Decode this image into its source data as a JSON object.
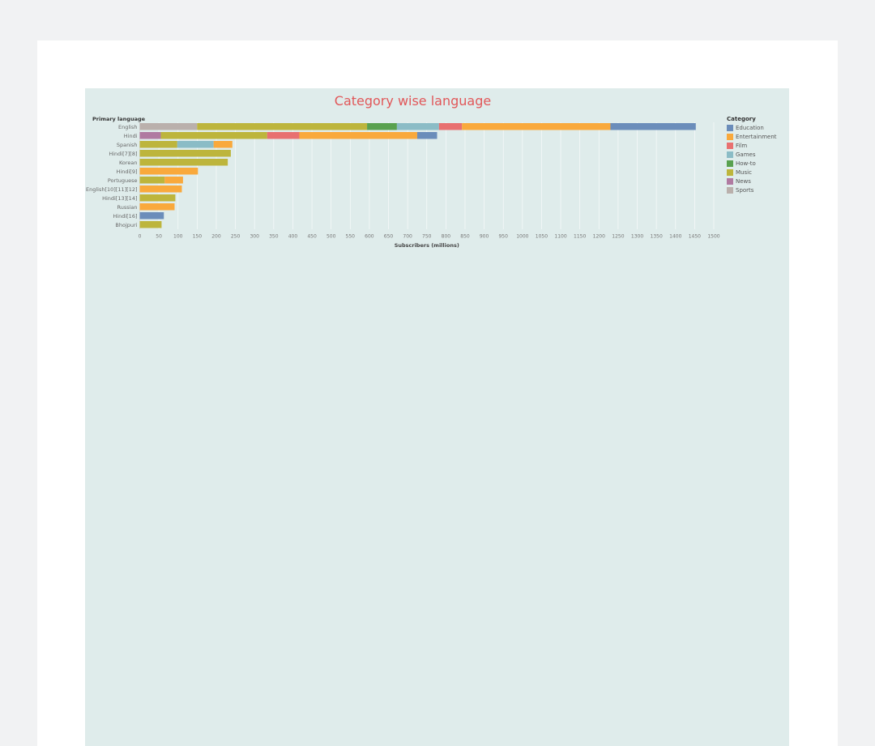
{
  "chart_data": {
    "type": "bar",
    "orientation": "horizontal",
    "stacked": true,
    "title": "Category wise language",
    "ylabel": "Primary language",
    "xlabel": "Subscribers (millions)",
    "xlim": [
      0,
      1500
    ],
    "xticks": [
      0,
      50,
      100,
      150,
      200,
      250,
      300,
      350,
      400,
      450,
      500,
      550,
      600,
      650,
      700,
      750,
      800,
      850,
      900,
      950,
      1000,
      1050,
      1100,
      1150,
      1200,
      1250,
      1300,
      1350,
      1400,
      1450,
      1500
    ],
    "grid": true,
    "legend_title": "Category",
    "legend_position": "right",
    "categories": [
      "English",
      "Hindi",
      "Spanish",
      "Hindi[7][8]",
      "Korean",
      "Hindi[9]",
      "Portuguese",
      "English[10][11][12]",
      "Hindi[13][14]",
      "Russian",
      "Hindi[16]",
      "Bhojpuri"
    ],
    "series": [
      {
        "name": "Sports",
        "color": "#bab0ac",
        "values": [
          150,
          0,
          0,
          0,
          0,
          0,
          0,
          0,
          0,
          0,
          0,
          0
        ]
      },
      {
        "name": "News",
        "color": "#b07aa1",
        "values": [
          0,
          55,
          0,
          0,
          0,
          0,
          0,
          0,
          0,
          0,
          0,
          0
        ]
      },
      {
        "name": "Music",
        "color": "#bdb53c",
        "values": [
          444,
          278,
          98,
          238,
          230,
          0,
          65,
          0,
          93,
          0,
          0,
          57
        ]
      },
      {
        "name": "How-to",
        "color": "#59a14f",
        "values": [
          78,
          0,
          0,
          0,
          0,
          0,
          0,
          0,
          0,
          0,
          0,
          0
        ]
      },
      {
        "name": "Games",
        "color": "#8bbcc6",
        "values": [
          110,
          0,
          95,
          0,
          0,
          0,
          0,
          0,
          0,
          0,
          0,
          0
        ]
      },
      {
        "name": "Film",
        "color": "#e87070",
        "values": [
          60,
          84,
          0,
          0,
          0,
          0,
          0,
          0,
          0,
          0,
          0,
          0
        ]
      },
      {
        "name": "Entertainment",
        "color": "#f9a93c",
        "values": [
          388,
          308,
          49,
          0,
          0,
          152,
          48,
          110,
          0,
          91,
          0,
          0
        ]
      },
      {
        "name": "Education",
        "color": "#6b8dba",
        "values": [
          223,
          52,
          0,
          0,
          0,
          0,
          0,
          0,
          0,
          0,
          63,
          0
        ]
      }
    ],
    "legend_order": [
      "Education",
      "Entertainment",
      "Film",
      "Games",
      "How-to",
      "Music",
      "News",
      "Sports"
    ]
  }
}
